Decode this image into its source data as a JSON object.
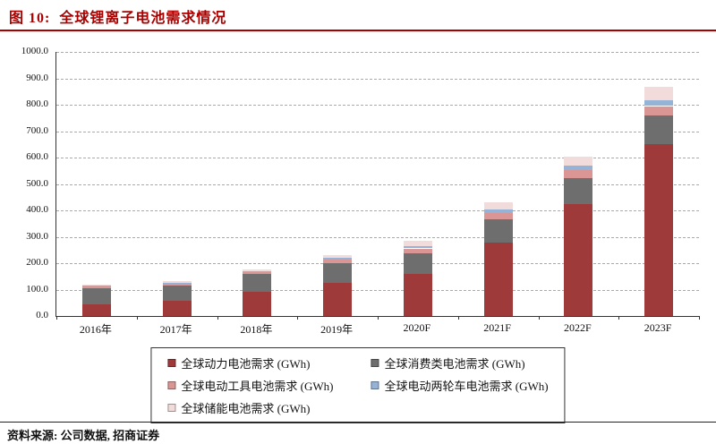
{
  "header": {
    "figure_label": "图 10:",
    "title": "全球锂离子电池需求情况"
  },
  "colors": {
    "accent": "#AA0000"
  },
  "source": {
    "text": "资料来源: 公司数据, 招商证券"
  },
  "chart_data": {
    "type": "bar",
    "stacked": true,
    "title": "全球锂离子电池需求情况",
    "xlabel": "",
    "ylabel": "",
    "ylim": [
      0,
      1000
    ],
    "ytick_step": 100,
    "grid": "dashed-horizontal",
    "legend_position": "bottom-boxed",
    "unit": "GWh",
    "categories": [
      "2016年",
      "2017年",
      "2018年",
      "2019年",
      "2020F",
      "2021F",
      "2022F",
      "2023F"
    ],
    "series": [
      {
        "name": "全球动力电池需求 (GWh)",
        "color": "#9E3B3A",
        "values": [
          45,
          58,
          90,
          125,
          158,
          278,
          425,
          652
        ]
      },
      {
        "name": "全球消费类电池需求 (GWh)",
        "color": "#6E6E6E",
        "values": [
          60,
          57,
          68,
          75,
          78,
          88,
          98,
          108
        ]
      },
      {
        "name": "全球电动工具电池需求 (GWh)",
        "color": "#D99694",
        "values": [
          6,
          8,
          9,
          14,
          20,
          25,
          30,
          35
        ]
      },
      {
        "name": "全球电动两轮车电池需求 (GWh)",
        "color": "#95B3D7",
        "values": [
          3,
          4,
          4,
          6,
          9,
          13,
          16,
          22
        ]
      },
      {
        "name": "全球储能电池需求 (GWh)",
        "color": "#F2DCDB",
        "values": [
          5,
          6,
          7,
          12,
          20,
          28,
          35,
          50
        ]
      }
    ]
  }
}
